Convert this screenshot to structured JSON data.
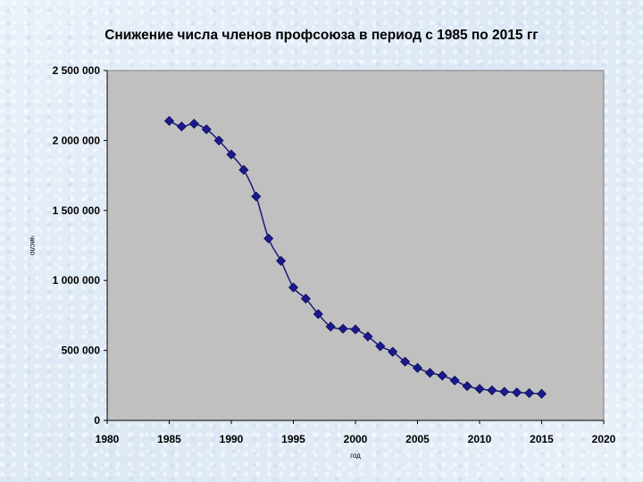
{
  "colors": {
    "plot_background": "#c0c0c0",
    "series_line": "#1a1a7a",
    "marker": "#1a1a8c",
    "axis": "#000000"
  },
  "chart_data": {
    "type": "scatter",
    "title": "Снижение числа членов профсоюза в период с 1985 по 2015 гг",
    "xlabel": "год",
    "ylabel": "число",
    "xlim": [
      1980,
      2020
    ],
    "ylim": [
      0,
      2500000
    ],
    "x_ticks": [
      1980,
      1985,
      1990,
      1995,
      2000,
      2005,
      2010,
      2015,
      2020
    ],
    "x_tick_labels": [
      "1980",
      "1985",
      "1990",
      "1995",
      "2000",
      "2005",
      "2010",
      "2015",
      "2020"
    ],
    "y_ticks": [
      0,
      500000,
      1000000,
      1500000,
      2000000,
      2500000
    ],
    "y_tick_labels": [
      "0",
      "500 000",
      "1 000 000",
      "1 500 000",
      "2 000 000",
      "2 500 000"
    ],
    "grid": false,
    "legend": "none",
    "marker": "diamond",
    "line": "smooth",
    "series": [
      {
        "x": [
          1985,
          1986,
          1987,
          1988,
          1989,
          1990,
          1991,
          1992,
          1993,
          1994,
          1995,
          1996,
          1997,
          1998,
          1999,
          2000,
          2001,
          2002,
          2003,
          2004,
          2005,
          2006,
          2007,
          2008,
          2009,
          2010,
          2011,
          2012,
          2013,
          2014,
          2015
        ],
        "y": [
          2140000,
          2100000,
          2120000,
          2080000,
          2000000,
          1900000,
          1790000,
          1600000,
          1300000,
          1140000,
          950000,
          870000,
          760000,
          670000,
          655000,
          650000,
          600000,
          530000,
          490000,
          420000,
          375000,
          340000,
          320000,
          285000,
          245000,
          225000,
          215000,
          205000,
          200000,
          195000,
          190000
        ]
      }
    ]
  }
}
